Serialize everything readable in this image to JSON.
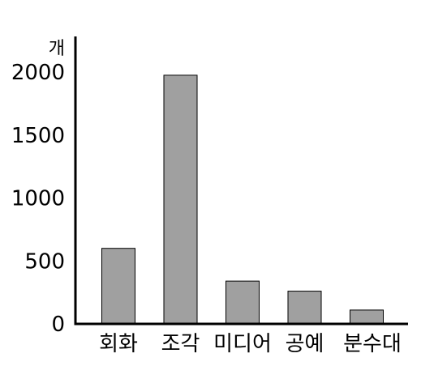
{
  "chart_data": {
    "type": "bar",
    "title": "",
    "xlabel": "",
    "ylabel": "개",
    "categories": [
      "회화",
      "조각",
      "미디어",
      "공예",
      "분수대"
    ],
    "values": [
      600,
      1975,
      340,
      260,
      110
    ],
    "ylim": [
      0,
      2100
    ],
    "yticks": [
      0,
      500,
      1000,
      1500,
      2000
    ],
    "grid": false,
    "legend": "none",
    "colors": {
      "bar_fill": "#a0a0a0",
      "bar_stroke": "#000000",
      "axis": "#000000"
    }
  }
}
